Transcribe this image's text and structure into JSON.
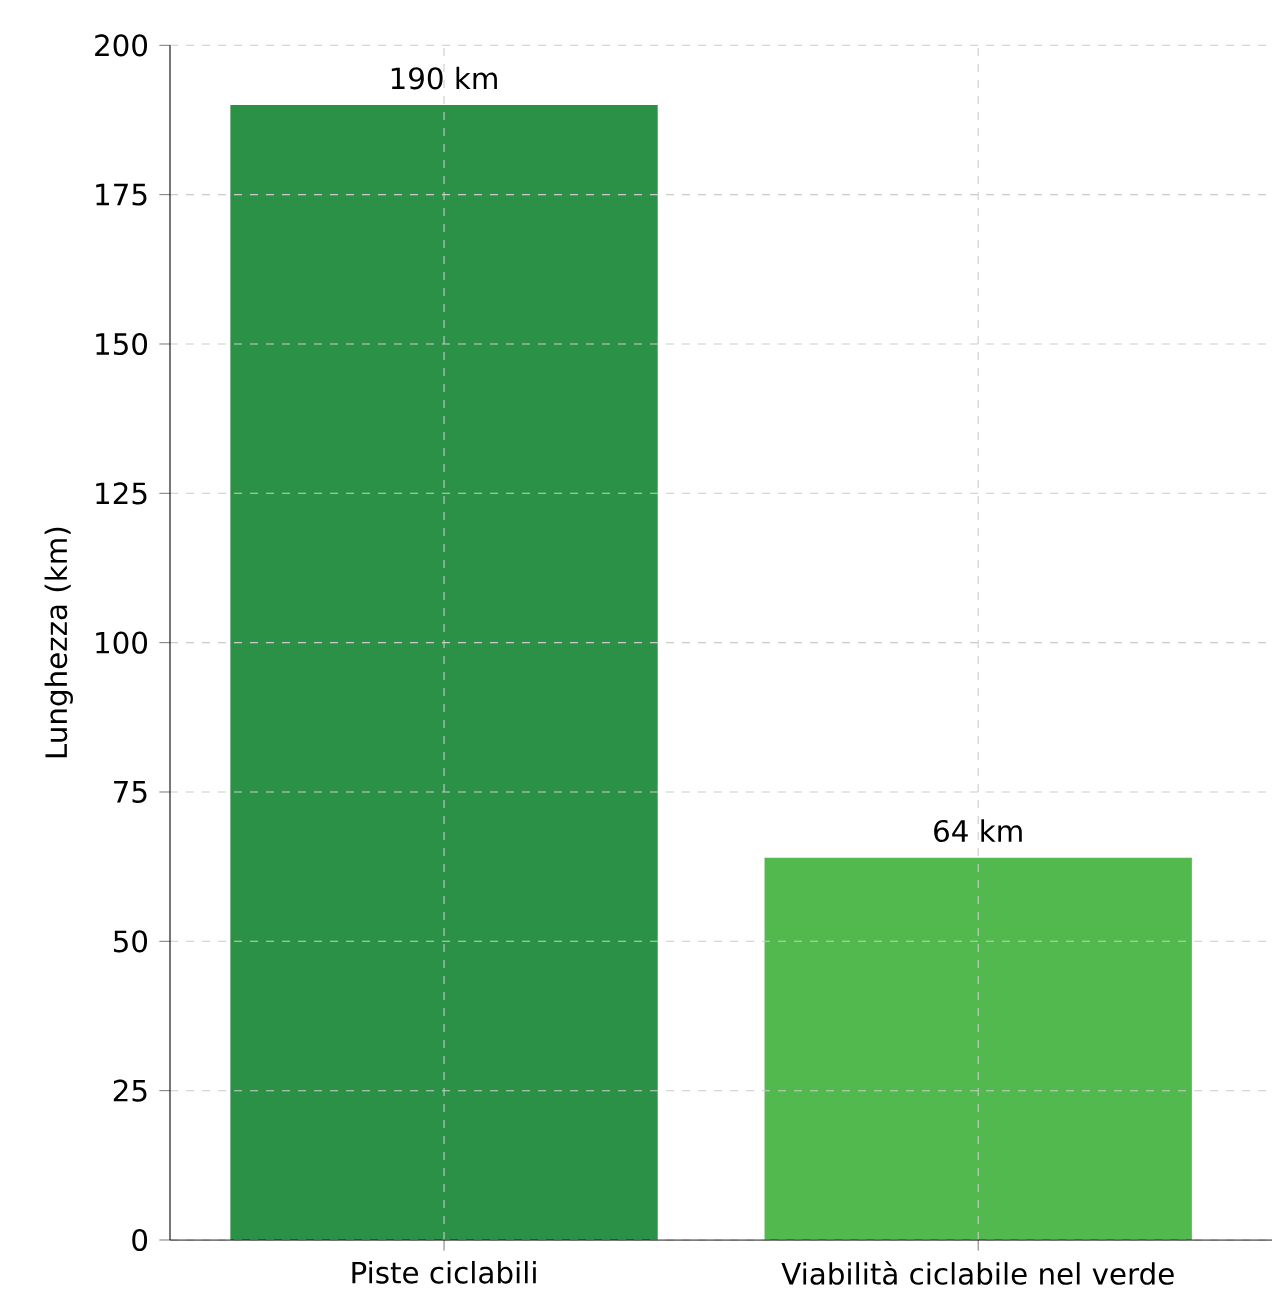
{
  "chart_data": {
    "type": "bar",
    "ylabel": "Lunghezza (km)",
    "categories": [
      "Piste ciclabili",
      "Viabilità ciclabile nel verde"
    ],
    "values": [
      190,
      64
    ],
    "colors": [
      "#2a9146",
      "#52b94f"
    ],
    "value_labels": [
      "190 km",
      "64 km"
    ],
    "ylim": [
      0,
      200
    ],
    "yticks": [
      0,
      25,
      50,
      75,
      100,
      125,
      150,
      175,
      200
    ],
    "grid": true
  }
}
